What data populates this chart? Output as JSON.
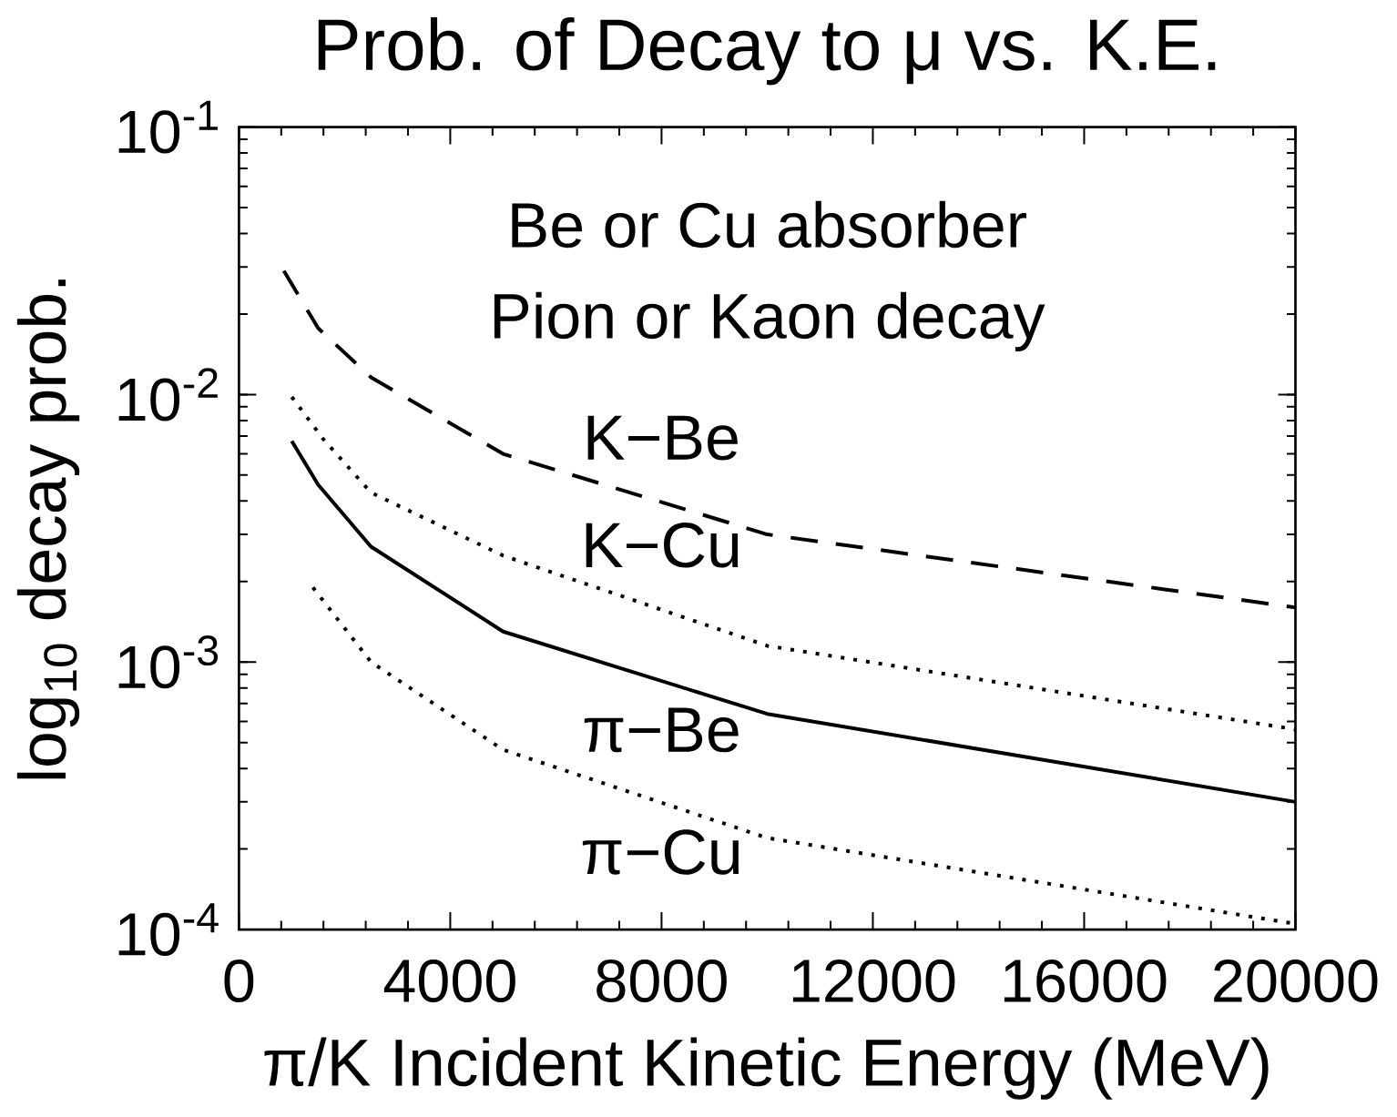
{
  "chart_data": {
    "type": "line",
    "title": "Prob. of Decay to μ vs. K.E.",
    "xlabel": "π/K Incident Kinetic Energy (MeV)",
    "ylabel": "log$_{10}$ decay prob.",
    "annotations": [
      "Be or Cu absorber",
      "Pion or Kaon decay"
    ],
    "log": "y",
    "xlim": [
      0,
      20000
    ],
    "ylim": [
      0.0001,
      0.1
    ],
    "xticks": [
      0,
      4000,
      8000,
      12000,
      16000,
      20000
    ],
    "yticks": [
      {
        "value": 0.0001,
        "label": "10$^{-4}$"
      },
      {
        "value": 0.001,
        "label": "10$^{-3}$"
      },
      {
        "value": 0.01,
        "label": "10$^{-2}$"
      },
      {
        "value": 0.1,
        "label": "10$^{-1}$"
      }
    ],
    "grid": false,
    "legend": false,
    "marker": "none",
    "series": [
      {
        "name": "K−Be",
        "color": "#000000",
        "line_style": "dashed",
        "x": [
          850,
          1500,
          2500,
          5000,
          10000,
          20000
        ],
        "values": [
          0.029,
          0.0177,
          0.0116,
          0.006,
          0.003,
          0.0016
        ]
      },
      {
        "name": "K−Cu",
        "color": "#000000",
        "line_style": "dotted",
        "x": [
          1000,
          1600,
          2500,
          5000,
          10000,
          20000
        ],
        "values": [
          0.0098,
          0.0068,
          0.0043,
          0.0025,
          0.00115,
          0.00056
        ]
      },
      {
        "name": "π−Be",
        "color": "#000000",
        "line_style": "solid",
        "x": [
          1000,
          1500,
          2500,
          5000,
          10000,
          20000
        ],
        "values": [
          0.0067,
          0.0046,
          0.0027,
          0.0013,
          0.00064,
          0.0003
        ]
      },
      {
        "name": "π−Cu",
        "color": "#000000",
        "line_style": "dotted",
        "x": [
          1400,
          2500,
          5000,
          10000,
          20000
        ],
        "values": [
          0.0019,
          0.001,
          0.00047,
          0.00022,
          0.000105
        ]
      }
    ]
  }
}
